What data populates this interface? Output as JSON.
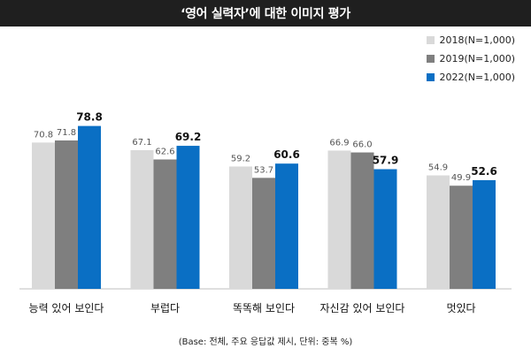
{
  "title": "‘영어 실력자’에 대한 이미지 평가",
  "footnote": "(Base: 전체, 주요 응답값 제시, 단위: 중복 %)",
  "chart_data": {
    "type": "bar",
    "categories": [
      "능력 있어 보인다",
      "부럽다",
      "똑똑해 보인다",
      "자신감 있어 보인다",
      "멋있다"
    ],
    "series": [
      {
        "name": "2018(N=1,000)",
        "values": [
          70.8,
          67.1,
          59.2,
          66.9,
          54.9
        ],
        "color": "#d9d9d9"
      },
      {
        "name": "2019(N=1,000)",
        "values": [
          71.8,
          62.6,
          53.7,
          66.0,
          49.9
        ],
        "color": "#7f7f7f"
      },
      {
        "name": "2022(N=1,000)",
        "values": [
          78.8,
          69.2,
          60.6,
          57.9,
          52.6
        ],
        "color": "#0a6fc4"
      }
    ],
    "ylim": [
      0,
      100
    ],
    "grid": false,
    "legend": "top-right"
  }
}
